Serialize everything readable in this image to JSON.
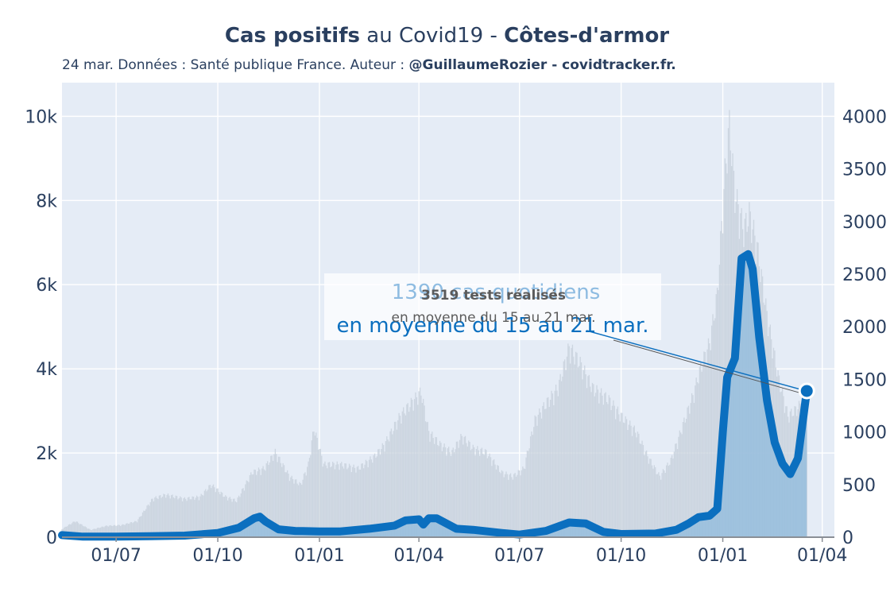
{
  "header": {
    "title_bold_1": "Cas positifs",
    "title_mid": " au Covid19 - ",
    "title_bold_2": "Côtes-d'armor",
    "subtitle_plain": "24 mar. Données : Santé publique France. Auteur : ",
    "subtitle_bold": "@GuillaumeRozier - covidtracker.fr."
  },
  "annotations": {
    "cases_line1": "1390 cas quotidiens",
    "cases_line2": "en moyenne du 15 au 21 mar.",
    "tests_line1": "3519 tests réalisés",
    "tests_line2": "en moyenne du 15 au 21 mar."
  },
  "colors": {
    "plot_bg": "#e5ecf6",
    "cases_line": "#0b6fbf",
    "cases_fill": "#8fb9dc",
    "tests_bar": "#c8d1dc",
    "annotation_big": "#0b6fbf",
    "annotation_small": "#5b5b5b"
  },
  "chart_data": {
    "type": "line",
    "x_tick_labels": [
      "01/07",
      "01/10",
      "01/01",
      "01/04",
      "01/07",
      "01/10",
      "01/01",
      "01/04"
    ],
    "x_tick_dates": [
      "2020-07-01",
      "2020-10-01",
      "2021-01-01",
      "2021-04-01",
      "2021-07-01",
      "2021-10-01",
      "2022-01-01",
      "2022-04-01"
    ],
    "x_range": [
      "2020-05-13",
      "2022-04-12"
    ],
    "left_axis": {
      "series": "tests",
      "range": [
        0,
        10800
      ],
      "ticks": [
        0,
        2000,
        4000,
        6000,
        8000,
        10000
      ],
      "tick_labels": [
        "0",
        "2k",
        "4k",
        "6k",
        "8k",
        "10k"
      ]
    },
    "right_axis": {
      "series": "cases",
      "range": [
        0,
        4320
      ],
      "ticks": [
        0,
        500,
        1000,
        1500,
        2000,
        2500,
        3000,
        3500,
        4000
      ],
      "tick_labels": [
        "0",
        "500",
        "1000",
        "1500",
        "2000",
        "2500",
        "3000",
        "3500",
        "4000"
      ]
    },
    "grid": true,
    "series": [
      {
        "key": "tests",
        "axis": "left",
        "style": "bars",
        "points": [
          [
            "2020-05-13",
            200
          ],
          [
            "2020-05-25",
            400
          ],
          [
            "2020-06-08",
            180
          ],
          [
            "2020-06-22",
            280
          ],
          [
            "2020-07-06",
            300
          ],
          [
            "2020-07-20",
            400
          ],
          [
            "2020-08-03",
            950
          ],
          [
            "2020-08-15",
            1050
          ],
          [
            "2020-09-01",
            950
          ],
          [
            "2020-09-15",
            1000
          ],
          [
            "2020-09-25",
            1300
          ],
          [
            "2020-10-08",
            1000
          ],
          [
            "2020-10-18",
            900
          ],
          [
            "2020-11-01",
            1600
          ],
          [
            "2020-11-12",
            1700
          ],
          [
            "2020-11-22",
            2100
          ],
          [
            "2020-12-05",
            1500
          ],
          [
            "2020-12-15",
            1300
          ],
          [
            "2020-12-22",
            1800
          ],
          [
            "2020-12-27",
            2700
          ],
          [
            "2021-01-05",
            1800
          ],
          [
            "2021-01-20",
            1800
          ],
          [
            "2021-02-05",
            1700
          ],
          [
            "2021-02-20",
            2000
          ],
          [
            "2021-03-01",
            2300
          ],
          [
            "2021-03-15",
            3000
          ],
          [
            "2021-04-03",
            3600
          ],
          [
            "2021-04-10",
            2600
          ],
          [
            "2021-04-20",
            2300
          ],
          [
            "2021-05-01",
            2100
          ],
          [
            "2021-05-10",
            2500
          ],
          [
            "2021-05-20",
            2200
          ],
          [
            "2021-06-01",
            2100
          ],
          [
            "2021-06-15",
            1600
          ],
          [
            "2021-06-25",
            1500
          ],
          [
            "2021-07-05",
            1700
          ],
          [
            "2021-07-15",
            2900
          ],
          [
            "2021-07-25",
            3300
          ],
          [
            "2021-08-05",
            3700
          ],
          [
            "2021-08-15",
            4700
          ],
          [
            "2021-08-25",
            4300
          ],
          [
            "2021-09-05",
            3700
          ],
          [
            "2021-09-20",
            3400
          ],
          [
            "2021-10-01",
            3000
          ],
          [
            "2021-10-15",
            2600
          ],
          [
            "2021-10-25",
            2000
          ],
          [
            "2021-11-05",
            1500
          ],
          [
            "2021-11-15",
            1900
          ],
          [
            "2021-11-25",
            2700
          ],
          [
            "2021-12-05",
            3500
          ],
          [
            "2021-12-12",
            4200
          ],
          [
            "2021-12-20",
            4800
          ],
          [
            "2021-12-27",
            6000
          ],
          [
            "2022-01-03",
            9000
          ],
          [
            "2022-01-07",
            10200
          ],
          [
            "2022-01-12",
            8500
          ],
          [
            "2022-01-20",
            7600
          ],
          [
            "2022-01-25",
            8000
          ],
          [
            "2022-02-01",
            7200
          ],
          [
            "2022-02-10",
            5500
          ],
          [
            "2022-02-20",
            4000
          ],
          [
            "2022-03-01",
            3000
          ],
          [
            "2022-03-10",
            3200
          ],
          [
            "2022-03-18",
            3519
          ]
        ]
      },
      {
        "key": "cases",
        "axis": "right",
        "style": "line+fill",
        "points": [
          [
            "2020-05-13",
            20
          ],
          [
            "2020-06-01",
            5
          ],
          [
            "2020-07-01",
            5
          ],
          [
            "2020-08-01",
            10
          ],
          [
            "2020-09-01",
            15
          ],
          [
            "2020-10-01",
            40
          ],
          [
            "2020-10-20",
            90
          ],
          [
            "2020-11-03",
            180
          ],
          [
            "2020-11-08",
            195
          ],
          [
            "2020-11-13",
            150
          ],
          [
            "2020-11-25",
            75
          ],
          [
            "2020-12-10",
            60
          ],
          [
            "2021-01-01",
            55
          ],
          [
            "2021-01-20",
            55
          ],
          [
            "2021-02-15",
            80
          ],
          [
            "2021-03-10",
            110
          ],
          [
            "2021-03-20",
            160
          ],
          [
            "2021-04-01",
            170
          ],
          [
            "2021-04-05",
            120
          ],
          [
            "2021-04-10",
            180
          ],
          [
            "2021-04-17",
            180
          ],
          [
            "2021-05-05",
            80
          ],
          [
            "2021-05-20",
            70
          ],
          [
            "2021-06-15",
            40
          ],
          [
            "2021-07-01",
            25
          ],
          [
            "2021-07-25",
            60
          ],
          [
            "2021-08-15",
            140
          ],
          [
            "2021-08-30",
            130
          ],
          [
            "2021-09-15",
            50
          ],
          [
            "2021-10-01",
            30
          ],
          [
            "2021-11-01",
            35
          ],
          [
            "2021-11-20",
            70
          ],
          [
            "2021-12-01",
            130
          ],
          [
            "2021-12-10",
            190
          ],
          [
            "2021-12-20",
            205
          ],
          [
            "2021-12-27",
            270
          ],
          [
            "2022-01-01",
            1000
          ],
          [
            "2022-01-05",
            1520
          ],
          [
            "2022-01-12",
            1700
          ],
          [
            "2022-01-18",
            2650
          ],
          [
            "2022-01-24",
            2690
          ],
          [
            "2022-01-28",
            2550
          ],
          [
            "2022-02-03",
            1900
          ],
          [
            "2022-02-10",
            1300
          ],
          [
            "2022-02-17",
            900
          ],
          [
            "2022-02-24",
            700
          ],
          [
            "2022-03-03",
            600
          ],
          [
            "2022-03-10",
            750
          ],
          [
            "2022-03-18",
            1390
          ]
        ]
      }
    ],
    "highlight": {
      "date": "2022-03-18",
      "cases": 1390,
      "tests": 3519
    }
  }
}
